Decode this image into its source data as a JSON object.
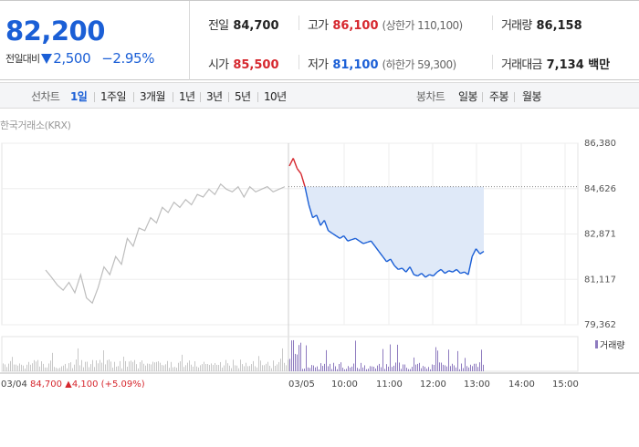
{
  "summary": {
    "price": "82,200",
    "change_label": "전일대비",
    "change_value": "2,500",
    "change_pct": "−2.95%",
    "prev_label": "전일",
    "prev_value": "84,700",
    "open_label": "시가",
    "open_value": "85,500",
    "high_label": "고가",
    "high_value": "86,100",
    "upper_limit": "(상한가 110,100)",
    "low_label": "저가",
    "low_value": "81,100",
    "lower_limit": "(하한가 59,300)",
    "volume_label": "거래량",
    "volume_value": "86,158",
    "amount_label": "거래대금",
    "amount_value": "7,134 백만"
  },
  "tabs": {
    "line_title": "선차트",
    "line_tabs": [
      "1일",
      "1주일",
      "3개월",
      "1년",
      "3년",
      "5년",
      "10년"
    ],
    "active": "1일",
    "candle_title": "봉차트",
    "candle_tabs": [
      "일봉",
      "주봉",
      "월봉"
    ]
  },
  "exchange_label": "한국거래소(KRX)",
  "colors": {
    "up": "#d6272e",
    "down": "#1b5fd6",
    "volume": "#8e7bbf",
    "prev_line": "#bdbdbd",
    "fill": "#dfe9f8"
  },
  "chart_data": {
    "type": "line",
    "y_ticks": [
      "86,380",
      "84,626",
      "82,871",
      "81,117",
      "79,362"
    ],
    "y_range": [
      79362,
      86380
    ],
    "x_ticks": [
      "03/05",
      "10:00",
      "11:00",
      "12:00",
      "13:00",
      "14:00",
      "15:00"
    ],
    "prev_session": {
      "date": "03/04",
      "info": {
        "close": "84,700",
        "change": "▲4,100",
        "pct": "(+5.09%)"
      },
      "values": [
        81480,
        81200,
        80900,
        80700,
        81000,
        80600,
        81300,
        80400,
        80200,
        80800,
        81600,
        81300,
        82000,
        81700,
        82700,
        82400,
        83100,
        83000,
        83500,
        83300,
        83900,
        83700,
        84100,
        83900,
        84200,
        84000,
        84400,
        84300,
        84600,
        84400,
        84800,
        84600,
        84500,
        84700,
        84300,
        84700,
        84500,
        84600,
        84700,
        84500,
        84600,
        84700
      ]
    },
    "today": {
      "prev_close": 84700,
      "values": [
        85500,
        85800,
        85400,
        85200,
        84700,
        84000,
        83500,
        83600,
        83200,
        83400,
        83000,
        82900,
        82800,
        82700,
        82800,
        82600,
        82650,
        82700,
        82600,
        82500,
        82550,
        82600,
        82400,
        82200,
        82000,
        81800,
        81900,
        81650,
        81500,
        81550,
        81400,
        81600,
        81300,
        81250,
        81350,
        81200,
        81300,
        81250,
        81400,
        81500,
        81350,
        81450,
        81400,
        81500,
        81350,
        81400,
        81300,
        82000,
        82300,
        82100,
        82200
      ]
    },
    "volume_legend": "거래량"
  }
}
